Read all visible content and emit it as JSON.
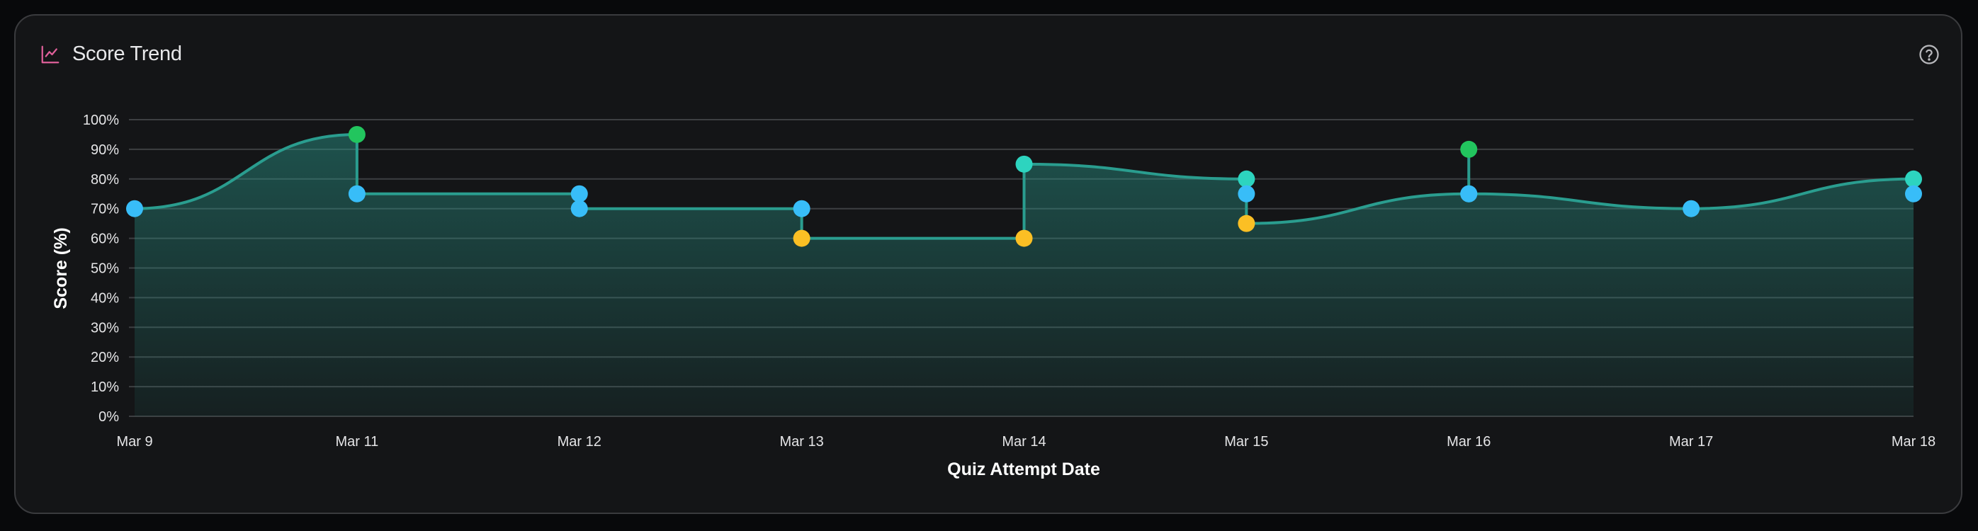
{
  "card": {
    "title": "Score Trend",
    "title_icon": "line-chart-icon",
    "help_icon": "help-circle-icon"
  },
  "colors": {
    "line": "#2a9d8f",
    "area": "#1f4f4a",
    "grid": "#3d3f42",
    "title_icon": "#e0609a",
    "score_90_plus": "#22c55e",
    "score_80s": "#2dd4bf",
    "score_70s": "#38bdf8",
    "score_60s": "#fbbf24"
  },
  "chart_data": {
    "type": "area",
    "title": "",
    "xlabel": "Quiz Attempt Date",
    "ylabel": "Score (%)",
    "ylim": [
      0,
      100
    ],
    "yticks": [
      "0%",
      "10%",
      "20%",
      "30%",
      "40%",
      "50%",
      "60%",
      "70%",
      "80%",
      "90%",
      "100%"
    ],
    "categories": [
      "Mar 9",
      "Mar 11",
      "Mar 12",
      "Mar 13",
      "Mar 14",
      "Mar 15",
      "Mar 16",
      "Mar 17",
      "Mar 18"
    ],
    "grid": true,
    "points": [
      {
        "x": "Mar 9",
        "y": 70
      },
      {
        "x": "Mar 11",
        "y": 95
      },
      {
        "x": "Mar 11",
        "y": 75
      },
      {
        "x": "Mar 12",
        "y": 75
      },
      {
        "x": "Mar 12",
        "y": 70
      },
      {
        "x": "Mar 13",
        "y": 70
      },
      {
        "x": "Mar 13",
        "y": 60
      },
      {
        "x": "Mar 14",
        "y": 60
      },
      {
        "x": "Mar 14",
        "y": 85
      },
      {
        "x": "Mar 15",
        "y": 80
      },
      {
        "x": "Mar 15",
        "y": 75
      },
      {
        "x": "Mar 15",
        "y": 65
      },
      {
        "x": "Mar 16",
        "y": 75
      },
      {
        "x": "Mar 16",
        "y": 90
      },
      {
        "x": "Mar 16",
        "y": 75
      },
      {
        "x": "Mar 17",
        "y": 70
      },
      {
        "x": "Mar 18",
        "y": 80
      },
      {
        "x": "Mar 18",
        "y": 75
      }
    ]
  }
}
